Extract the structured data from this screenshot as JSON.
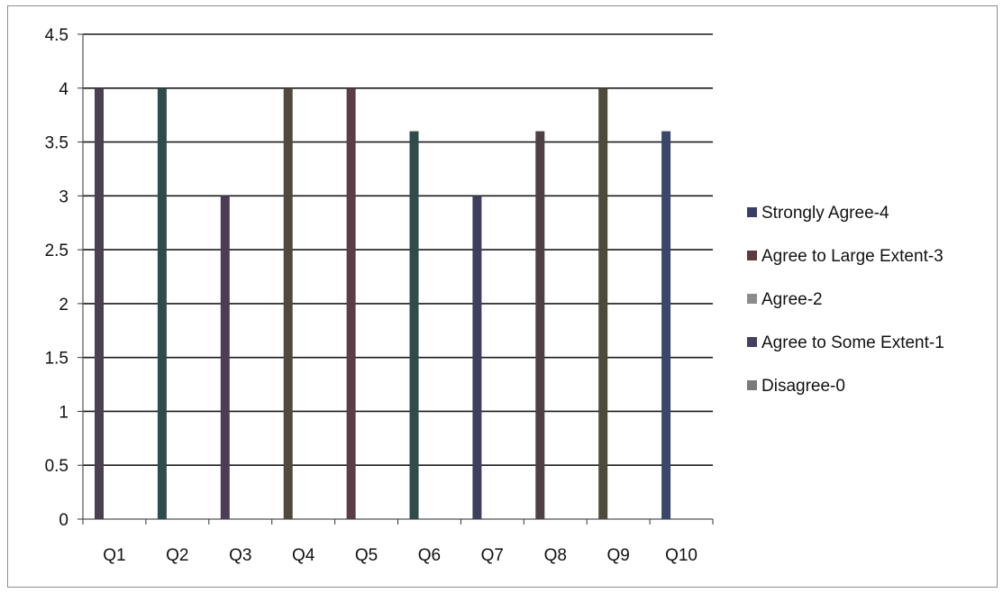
{
  "chart_data": {
    "type": "bar",
    "title": "",
    "xlabel": "",
    "ylabel": "",
    "categories": [
      "Q1",
      "Q2",
      "Q3",
      "Q4",
      "Q5",
      "Q6",
      "Q7",
      "Q8",
      "Q9",
      "Q10"
    ],
    "ylim": [
      0,
      4.5
    ],
    "yticks": [
      "0",
      "0.5",
      "1",
      "1.5",
      "2",
      "2.5",
      "3",
      "3.5",
      "4",
      "4.5"
    ],
    "grid": true,
    "legend_position": "right",
    "series": [
      {
        "name": "Strongly Agree-4",
        "color": "#3a3d66"
      },
      {
        "name": "Agree to Large Extent-3",
        "color": "#5b3b3d"
      },
      {
        "name": "Agree-2",
        "color": "#8c8c8c"
      },
      {
        "name": "Agree to Some Extent-1",
        "color": "#463f5e"
      },
      {
        "name": "Disagree-0",
        "color": "#7a7a7a"
      }
    ],
    "values": [
      4,
      4,
      3,
      4,
      4,
      3.6,
      3,
      3.6,
      4,
      3.6
    ],
    "bar_colors": [
      "#4b3f52",
      "#2f4b4e",
      "#4a3d55",
      "#4f4a3b",
      "#5a3d48",
      "#2f4b4a",
      "#3d3f5c",
      "#4e3f45",
      "#4c4a3a",
      "#38476a"
    ]
  }
}
